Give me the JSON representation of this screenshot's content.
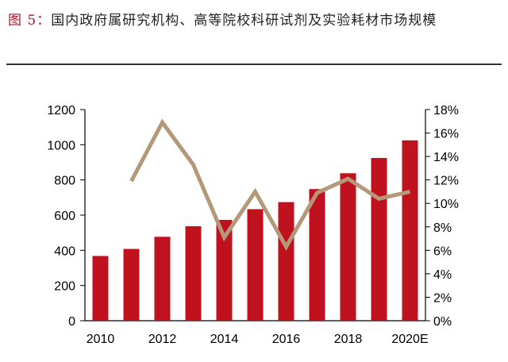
{
  "caption": {
    "fig_label": "图 5：",
    "text": "国内政府属研究机构、高等院校科研试剂及实验耗材市场规模"
  },
  "chart_data": {
    "type": "bar+line",
    "title": "",
    "categories": [
      "2010",
      "2011",
      "2012",
      "2013",
      "2014",
      "2015",
      "2016",
      "2017",
      "2018",
      "2019",
      "2020E"
    ],
    "x_tick_labels": [
      "2010",
      "2012",
      "2014",
      "2016",
      "2018",
      "2020E"
    ],
    "series": [
      {
        "type": "bar",
        "axis": "left",
        "color": "#c0111f",
        "values": [
          368,
          408,
          477,
          537,
          573,
          634,
          674,
          748,
          838,
          925,
          1025
        ]
      },
      {
        "type": "line",
        "axis": "right",
        "color": "#b5987a",
        "values": [
          null,
          11.9,
          16.9,
          13.3,
          7.1,
          11.0,
          6.3,
          10.9,
          12.1,
          10.4,
          11.0
        ]
      }
    ],
    "y_left": {
      "min": 0,
      "max": 1200,
      "ticks": [
        "0",
        "200",
        "400",
        "600",
        "800",
        "1000",
        "1200"
      ]
    },
    "y_right": {
      "min": 0,
      "max": 18,
      "ticks": [
        "0%",
        "2%",
        "4%",
        "6%",
        "8%",
        "10%",
        "12%",
        "14%",
        "16%",
        "18%"
      ]
    },
    "grid": false,
    "legend": "none"
  }
}
